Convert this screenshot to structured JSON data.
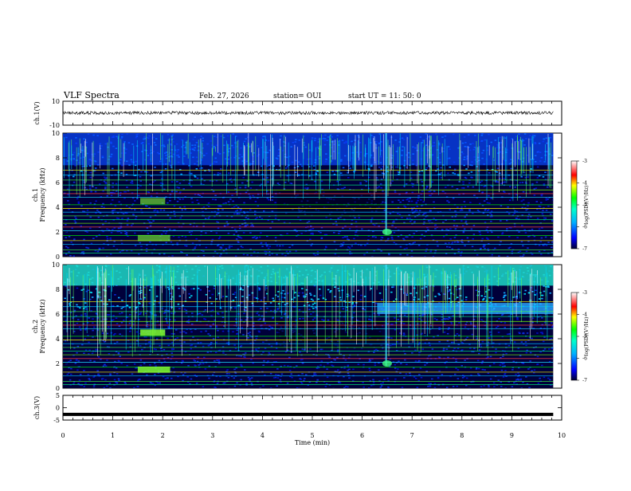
{
  "header": {
    "title": "VLF Spectra",
    "date": "Feb. 27, 2026",
    "station": "station= OUI",
    "start": "start  UT =   11: 50: 0"
  },
  "colors": {
    "background": "#ffffff",
    "axis": "#000000",
    "trace": "#000000"
  },
  "chart_data": [
    {
      "type": "line",
      "panel": "ch1-waveform",
      "ylabel": "ch.1(V)",
      "ylim": [
        -10,
        10
      ],
      "ytick_labels": [
        "10",
        "-10"
      ],
      "ytick_values": [
        10,
        -10
      ],
      "x": [
        0,
        9.83
      ],
      "y": [
        0,
        0
      ],
      "description_value": "near-zero broadband waveform"
    },
    {
      "type": "heatmap",
      "panel": "ch1-spectrogram",
      "ylabel": "ch.1",
      "ylabel2": "Frequency  (kHz)",
      "ylim": [
        0,
        10
      ],
      "ytick_labels": [
        "0",
        "2",
        "4",
        "6",
        "8",
        "10"
      ],
      "ytick_values": [
        0,
        2,
        4,
        6,
        8,
        10
      ],
      "xlim": [
        0,
        10
      ],
      "data_end_min": 9.83,
      "colorbar": {
        "label": "log(PSD)(V²/Hz)",
        "range": [
          -7,
          -3
        ],
        "tick_labels": [
          "-3",
          "-4",
          "-5",
          "-6",
          "-7"
        ],
        "tick_values": [
          -3,
          -4,
          -5,
          -6,
          -7
        ]
      }
    },
    {
      "type": "heatmap",
      "panel": "ch2-spectrogram",
      "ylabel": "ch.2",
      "ylabel2": "Frequency  (kHz)",
      "ylim": [
        0,
        10
      ],
      "ytick_labels": [
        "0",
        "2",
        "4",
        "6",
        "8",
        "10"
      ],
      "ytick_values": [
        0,
        2,
        4,
        6,
        8,
        10
      ],
      "xlim": [
        0,
        10
      ],
      "data_end_min": 9.83,
      "colorbar": {
        "label": "log(PSD)(V²/Hz)",
        "range": [
          -7,
          -3
        ],
        "tick_labels": [
          "-3",
          "-4",
          "-5",
          "-6",
          "-7"
        ],
        "tick_values": [
          -3,
          -4,
          -5,
          -6,
          -7
        ]
      }
    },
    {
      "type": "line",
      "panel": "ch3-waveform",
      "ylabel": "ch.3(V)",
      "ylim": [
        -5,
        5
      ],
      "ytick_labels": [
        "5",
        "0",
        "-5"
      ],
      "ytick_values": [
        5,
        0,
        -5
      ],
      "x": [
        0,
        9.83
      ],
      "y": [
        -2.7,
        -2.7
      ]
    }
  ],
  "xaxis": {
    "label": "Time  (min)",
    "range": [
      0,
      10
    ],
    "tick_labels": [
      "0",
      "1",
      "2",
      "3",
      "4",
      "5",
      "6",
      "7",
      "8",
      "9",
      "10"
    ],
    "tick_values": [
      0,
      1,
      2,
      3,
      4,
      5,
      6,
      7,
      8,
      9,
      10
    ]
  }
}
